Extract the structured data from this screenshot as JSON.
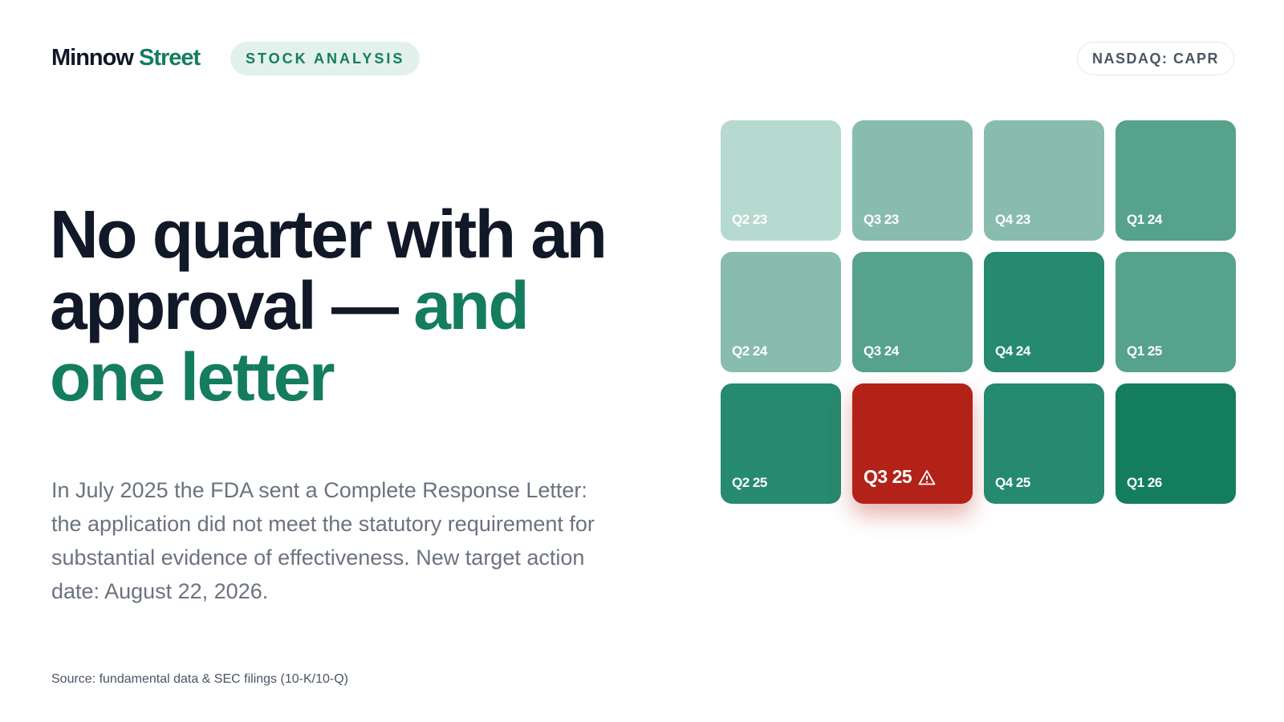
{
  "header": {
    "brand": {
      "first": "Minnow",
      "second": "Street"
    },
    "tag": "STOCK ANALYSIS",
    "ticker": "NASDAQ: CAPR"
  },
  "headline": {
    "dark": "No quarter with an approval — ",
    "accent": "and one letter"
  },
  "body": "In July 2025 the FDA sent a Complete Response Letter: the application did not meet the statutory requirement for substantial evidence of effectiveness. New target action date: August 22, 2026.",
  "tiles": [
    {
      "label": "Q2 23",
      "color": "#b6d9d0"
    },
    {
      "label": "Q3 23",
      "color": "#88bcae"
    },
    {
      "label": "Q4 23",
      "color": "#88bcae"
    },
    {
      "label": "Q1 24",
      "color": "#56a28c"
    },
    {
      "label": "Q2 24",
      "color": "#88bcae"
    },
    {
      "label": "Q3 24",
      "color": "#56a28c"
    },
    {
      "label": "Q4 24",
      "color": "#258a6f"
    },
    {
      "label": "Q1 25",
      "color": "#56a28c"
    },
    {
      "label": "Q2 25",
      "color": "#258a6f"
    },
    {
      "label": "Q3 25",
      "color": "#b32218",
      "highlight": true
    },
    {
      "label": "Q4 25",
      "color": "#258a6f"
    },
    {
      "label": "Q1 26",
      "color": "#147d5e"
    }
  ],
  "source": "Source: fundamental data & SEC filings (10-K/10-Q)"
}
